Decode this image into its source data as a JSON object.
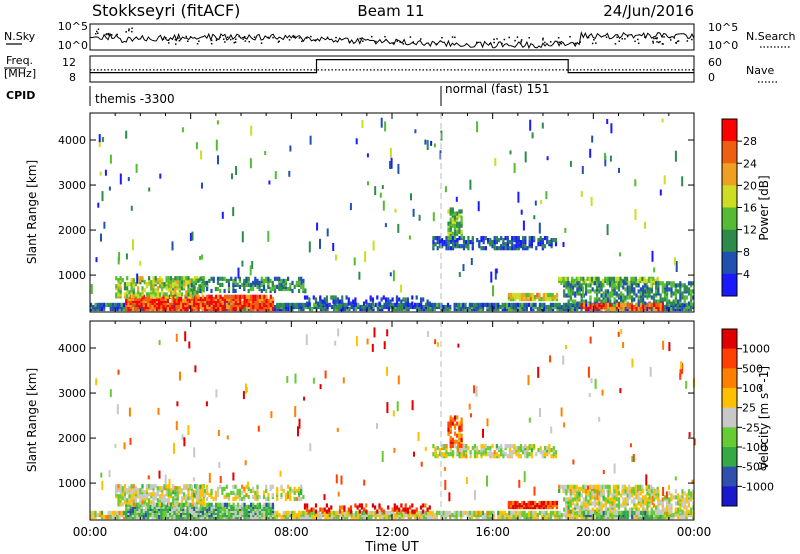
{
  "header": {
    "title": "Stokkseyri (fitACF)",
    "beam": "Beam 11",
    "date": "24/Jun/2016"
  },
  "strips": {
    "nsky_label": "N.Sky",
    "nsearch_label": "N.Search",
    "noise_ticks": [
      "10^5",
      "10^0"
    ],
    "freq_label_1": "Freq.",
    "freq_label_2": "[MHz]",
    "freq_ticks": [
      "12",
      "8"
    ],
    "nave_label": "Nave",
    "nave_ticks": [
      "60",
      "0"
    ],
    "cpid_label": "CPID",
    "cpid_segments": [
      {
        "label": "themis -3300",
        "start_hour": 0
      },
      {
        "label": "normal (fast) 151",
        "start_hour": 14.0
      }
    ]
  },
  "colors": {
    "power": [
      "#1a1aff",
      "#2050b0",
      "#2e8a4a",
      "#55bb33",
      "#ccdd22",
      "#f0a020",
      "#ee6010",
      "#ff0000"
    ],
    "velocity": [
      "#e00000",
      "#ff4000",
      "#ff8000",
      "#ffc000",
      "#c8c8c8",
      "#66cc33",
      "#33aa44",
      "#3050b0",
      "#1a1acc"
    ],
    "ground_scatter": "#c8c8c8",
    "frame": "#000000"
  },
  "chart_data": [
    {
      "type": "heatmap",
      "name": "power",
      "xlabel": "",
      "ylabel": "Slant Range [km]",
      "x_ticks": [
        "00:00",
        "04:00",
        "08:00",
        "12:00",
        "16:00",
        "20:00",
        "00:00"
      ],
      "xlim_hours": [
        0,
        24
      ],
      "ylim_km": [
        180,
        4600
      ],
      "y_ticks": [
        1000,
        2000,
        3000,
        4000
      ],
      "colorbar": {
        "label": "Power [dB]",
        "ticks": [
          "4",
          "8",
          "12",
          "16",
          "20",
          "24",
          "28"
        ],
        "range": [
          0,
          30
        ]
      },
      "regions": [
        {
          "t0": 0.0,
          "t1": 24.0,
          "r0": 200,
          "r1": 320,
          "level": 0.25,
          "density": 0.85
        },
        {
          "t0": 1.4,
          "t1": 7.3,
          "r0": 200,
          "r1": 480,
          "level": 0.85,
          "density": 0.8
        },
        {
          "t0": 1.0,
          "t1": 4.5,
          "r0": 480,
          "r1": 900,
          "level": 0.5,
          "density": 0.5
        },
        {
          "t0": 4.0,
          "t1": 8.5,
          "r0": 600,
          "r1": 900,
          "level": 0.3,
          "density": 0.4
        },
        {
          "t0": 13.6,
          "t1": 18.5,
          "r0": 1550,
          "r1": 1780,
          "level": 0.2,
          "density": 0.5
        },
        {
          "t0": 14.2,
          "t1": 14.8,
          "r0": 1780,
          "r1": 2450,
          "level": 0.45,
          "density": 0.5
        },
        {
          "t0": 16.6,
          "t1": 18.6,
          "r0": 420,
          "r1": 540,
          "level": 0.6,
          "density": 0.9
        },
        {
          "t0": 18.6,
          "t1": 22.6,
          "r0": 780,
          "r1": 900,
          "level": 0.45,
          "density": 0.7
        },
        {
          "t0": 18.8,
          "t1": 24.0,
          "r0": 320,
          "r1": 780,
          "level": 0.3,
          "density": 0.5
        },
        {
          "t0": 19.5,
          "t1": 22.8,
          "r0": 200,
          "r1": 320,
          "level": 0.8,
          "density": 0.7
        },
        {
          "t0": 8.5,
          "t1": 13.5,
          "r0": 320,
          "r1": 500,
          "level": 0.15,
          "density": 0.3
        }
      ]
    },
    {
      "type": "heatmap",
      "name": "velocity",
      "xlabel": "Time UT",
      "ylabel": "Slant Range [km]",
      "x_ticks": [
        "00:00",
        "04:00",
        "08:00",
        "12:00",
        "16:00",
        "20:00",
        "00:00"
      ],
      "xlim_hours": [
        0,
        24
      ],
      "ylim_km": [
        180,
        4600
      ],
      "y_ticks": [
        1000,
        2000,
        3000,
        4000
      ],
      "colorbar": {
        "label": "Velocity [m s^-1]",
        "ticks": [
          "1000",
          "500",
          "100",
          "25",
          "-25",
          "-100",
          "-500",
          "-1000"
        ],
        "range": [
          -1000,
          1000
        ]
      },
      "regions": [
        {
          "t0": 0.0,
          "t1": 24.0,
          "r0": 200,
          "r1": 320,
          "level": 0.5,
          "density": 0.85
        },
        {
          "t0": 1.4,
          "t1": 7.3,
          "r0": 200,
          "r1": 480,
          "level": 0.65,
          "density": 0.8
        },
        {
          "t0": 1.0,
          "t1": 4.5,
          "r0": 480,
          "r1": 900,
          "level": 0.5,
          "density": 0.55
        },
        {
          "t0": 4.0,
          "t1": 8.5,
          "r0": 600,
          "r1": 900,
          "level": 0.5,
          "density": 0.4
        },
        {
          "t0": 13.6,
          "t1": 18.5,
          "r0": 1550,
          "r1": 1780,
          "level": 0.5,
          "density": 0.5
        },
        {
          "t0": 14.2,
          "t1": 14.8,
          "r0": 1780,
          "r1": 2450,
          "level": 0.2,
          "density": 0.5
        },
        {
          "t0": 16.6,
          "t1": 18.6,
          "r0": 420,
          "r1": 540,
          "level": 0.15,
          "density": 0.95
        },
        {
          "t0": 18.6,
          "t1": 22.6,
          "r0": 780,
          "r1": 900,
          "level": 0.5,
          "density": 0.7
        },
        {
          "t0": 18.8,
          "t1": 24.0,
          "r0": 320,
          "r1": 780,
          "level": 0.5,
          "density": 0.5
        },
        {
          "t0": 19.5,
          "t1": 22.8,
          "r0": 200,
          "r1": 320,
          "level": 0.65,
          "density": 0.7
        },
        {
          "t0": 8.5,
          "t1": 13.5,
          "r0": 320,
          "r1": 500,
          "level": 0.1,
          "density": 0.3
        }
      ]
    }
  ]
}
